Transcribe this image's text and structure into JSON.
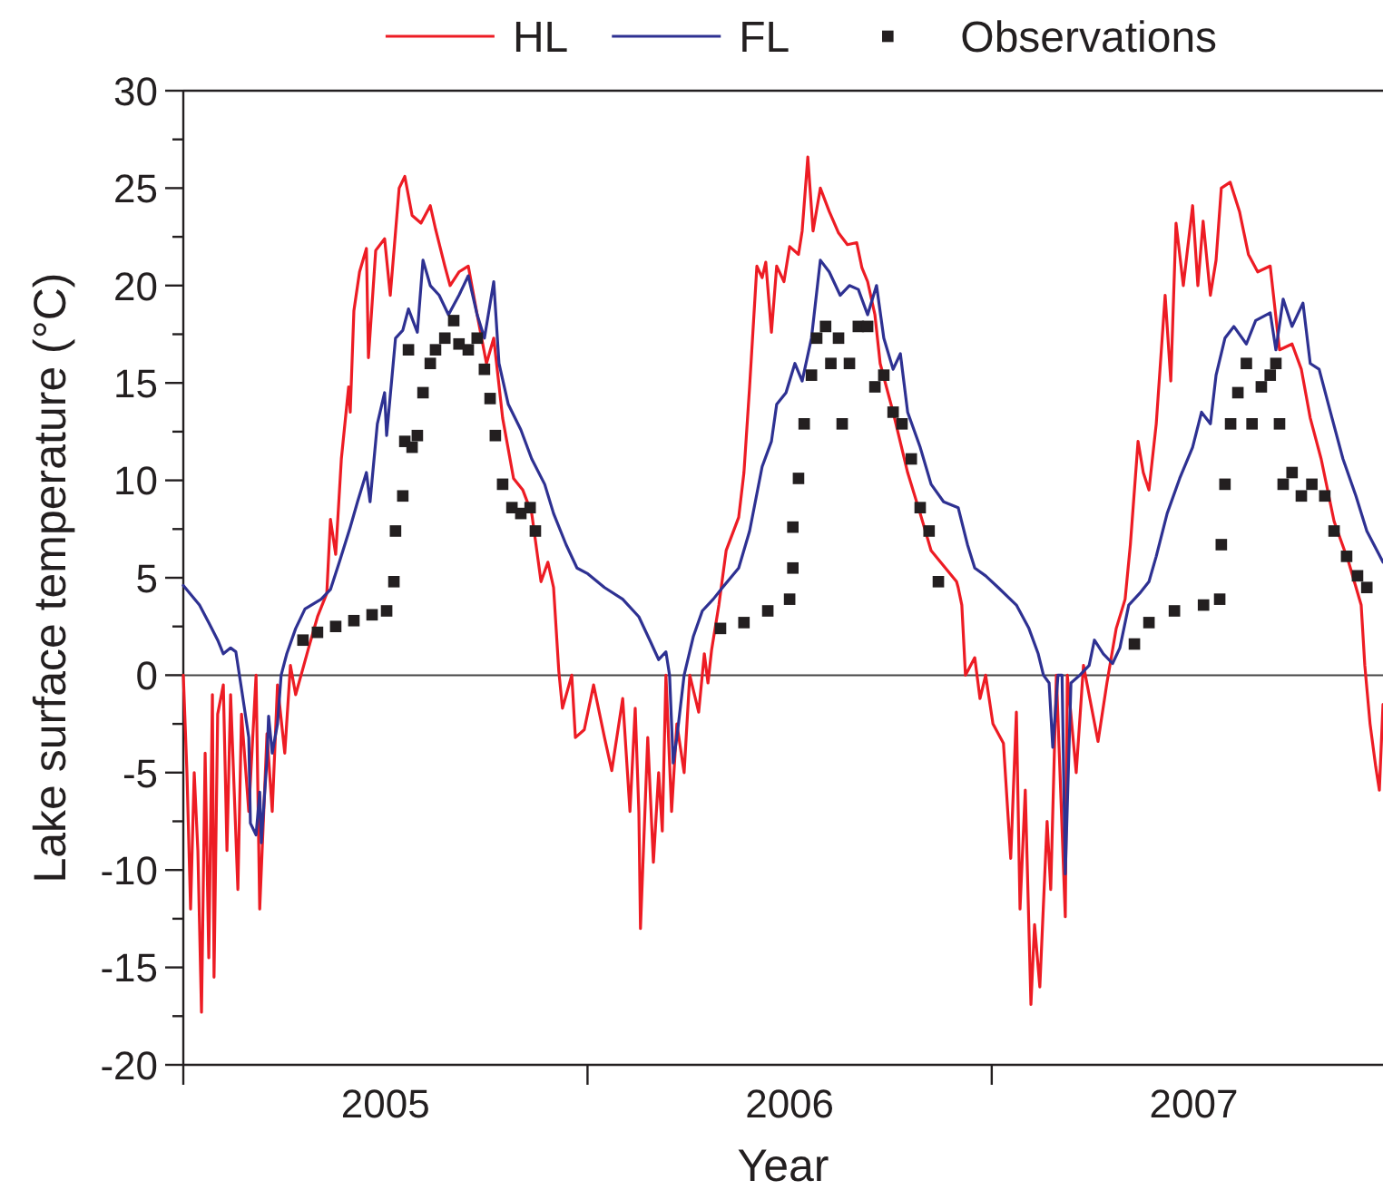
{
  "chart_data": {
    "type": "line",
    "xlabel": "Year",
    "ylabel": "Lake surface temperature (°C)",
    "xlim": [
      2005,
      2007.968
    ],
    "ylim": [
      -20,
      30
    ],
    "xticks": [
      {
        "value": 2005,
        "label": null
      },
      {
        "value": 2005.5,
        "label": "2005"
      },
      {
        "value": 2006,
        "label": null
      },
      {
        "value": 2006.5,
        "label": "2006"
      },
      {
        "value": 2007,
        "label": null
      },
      {
        "value": 2007.5,
        "label": "2007"
      }
    ],
    "yticks": [
      -20,
      {
        "value": -17.5,
        "label": null
      },
      -15,
      {
        "value": -12.5,
        "label": null
      },
      -10,
      {
        "value": -7.5,
        "label": null
      },
      -5,
      {
        "value": -2.5,
        "label": null
      },
      0,
      {
        "value": 2.5,
        "label": null
      },
      5,
      {
        "value": 7.5,
        "label": null
      },
      10,
      {
        "value": 12.5,
        "label": null
      },
      15,
      {
        "value": 17.5,
        "label": null
      },
      20,
      {
        "value": 22.5,
        "label": null
      },
      25,
      {
        "value": 27.5,
        "label": null
      },
      30
    ],
    "legend": "top",
    "grid": false,
    "line_style": "solid",
    "ref_lines": [
      {
        "axis": "y",
        "value": 0,
        "color": "#444444"
      }
    ],
    "series": [
      {
        "name": "HL",
        "color": "#ed1c24",
        "marker": "none",
        "x": [
          2005.0,
          2005.009,
          2005.018,
          2005.027,
          2005.036,
          2005.045,
          2005.054,
          2005.063,
          2005.072,
          2005.076,
          2005.085,
          2005.099,
          2005.108,
          2005.117,
          2005.135,
          2005.144,
          2005.162,
          2005.18,
          2005.189,
          2005.207,
          2005.22,
          2005.233,
          2005.251,
          2005.265,
          2005.278,
          2005.31,
          2005.332,
          2005.355,
          2005.364,
          2005.377,
          2005.391,
          2005.409,
          2005.413,
          2005.422,
          2005.436,
          2005.453,
          2005.458,
          2005.476,
          2005.498,
          2005.512,
          2005.534,
          2005.548,
          2005.566,
          2005.588,
          2005.611,
          2005.624,
          2005.647,
          2005.66,
          2005.682,
          2005.705,
          2005.727,
          2005.75,
          2005.768,
          2005.79,
          2005.817,
          2005.84,
          2005.862,
          2005.885,
          2005.902,
          2005.916,
          2005.929,
          2005.938,
          2005.961,
          2005.97,
          2005.992,
          2006.015,
          2006.042,
          2006.06,
          2006.087,
          2006.105,
          2006.118,
          2006.127,
          2006.131,
          2006.149,
          2006.163,
          2006.176,
          2006.185,
          2006.194,
          2006.208,
          2006.221,
          2006.239,
          2006.253,
          2006.275,
          2006.289,
          2006.298,
          2006.307,
          2006.325,
          2006.343,
          2006.374,
          2006.387,
          2006.401,
          2006.419,
          2006.432,
          2006.441,
          2006.455,
          2006.468,
          2006.486,
          2006.5,
          2006.522,
          2006.531,
          2006.545,
          2006.558,
          2006.576,
          2006.598,
          2006.621,
          2006.643,
          2006.666,
          2006.679,
          2006.693,
          2006.711,
          2006.724,
          2006.756,
          2006.792,
          2006.823,
          2006.85,
          2006.913,
          2006.917,
          2006.926,
          2006.935,
          2006.958,
          2006.971,
          2006.985,
          2007.003,
          2007.029,
          2007.047,
          2007.061,
          2007.07,
          2007.083,
          2007.097,
          2007.106,
          2007.119,
          2007.137,
          2007.146,
          2007.16,
          2007.182,
          2007.187,
          2007.209,
          2007.227,
          2007.263,
          2007.285,
          2007.308,
          2007.33,
          2007.343,
          2007.362,
          2007.375,
          2007.389,
          2007.407,
          2007.429,
          2007.443,
          2007.456,
          2007.474,
          2007.497,
          2007.51,
          2007.523,
          2007.541,
          2007.555,
          2007.568,
          2007.59,
          2007.613,
          2007.635,
          2007.658,
          2007.689,
          2007.712,
          2007.743,
          2007.766,
          2007.788,
          2007.815,
          2007.847,
          2007.883,
          2007.914,
          2007.923,
          2007.936,
          2007.95,
          2007.959,
          2007.968
        ],
        "values": [
          0,
          -5,
          -12,
          -5,
          -9,
          -17.3,
          -4,
          -14.5,
          -1,
          -15.5,
          -2,
          -0.5,
          -9,
          -1,
          -11,
          -2,
          -7,
          0,
          -12,
          -3,
          -7,
          -0.5,
          -4,
          0.5,
          -1,
          1.4,
          3,
          4.2,
          8,
          6.2,
          11.1,
          14.8,
          13.5,
          18.7,
          20.7,
          21.9,
          16.3,
          21.8,
          22.4,
          19.5,
          25,
          25.6,
          23.6,
          23.2,
          24.1,
          22.9,
          21,
          20,
          20.7,
          21,
          18.5,
          16,
          17.3,
          13.2,
          10.1,
          9.5,
          8.3,
          4.8,
          5.8,
          4.5,
          0.2,
          -1.7,
          0,
          -3.2,
          -2.8,
          -0.5,
          -3.2,
          -4.9,
          -1.2,
          -7,
          -1.7,
          -7,
          -13,
          -3.2,
          -9.6,
          -5,
          -8,
          0,
          -7,
          -2.5,
          -5,
          0,
          -1.9,
          1.1,
          -0.4,
          1.3,
          3.6,
          6.4,
          8.1,
          10.4,
          14.8,
          21,
          20.4,
          21.2,
          17.6,
          21,
          20.2,
          22,
          21.6,
          22.8,
          26.6,
          22.8,
          25,
          23.8,
          22.7,
          22.1,
          22.2,
          20.9,
          20.2,
          18.5,
          16,
          13.5,
          10.4,
          8.3,
          6.4,
          4.8,
          4.5,
          3.6,
          0,
          0.9,
          -1.2,
          0,
          -2.5,
          -3.5,
          -9.4,
          -1.9,
          -12,
          -5.9,
          -16.9,
          -12.8,
          -16,
          -7.5,
          -11,
          0,
          -12.4,
          0,
          -5,
          0.5,
          -3.4,
          -0.4,
          2.4,
          3.9,
          6.7,
          12,
          10.4,
          9.5,
          12.9,
          19.5,
          15.1,
          23.2,
          20,
          24.1,
          20,
          23.3,
          19.5,
          21.3,
          25,
          25.3,
          23.8,
          21.6,
          20.7,
          21,
          16.7,
          17,
          15.7,
          13.2,
          11.1,
          7.9,
          5.8,
          3.6,
          0.5,
          -2.5,
          -4.7,
          -5.9,
          -1.5
        ]
      },
      {
        "name": "FL",
        "color": "#2e3192",
        "marker": "none",
        "x": [
          2005.0,
          2005.04,
          2005.063,
          2005.085,
          2005.099,
          2005.117,
          2005.13,
          2005.144,
          2005.162,
          2005.166,
          2005.18,
          2005.189,
          2005.193,
          2005.207,
          2005.211,
          2005.22,
          2005.233,
          2005.242,
          2005.256,
          2005.278,
          2005.301,
          2005.341,
          2005.364,
          2005.386,
          2005.413,
          2005.431,
          2005.453,
          2005.462,
          2005.48,
          2005.498,
          2005.503,
          2005.525,
          2005.543,
          2005.557,
          2005.579,
          2005.593,
          2005.611,
          2005.633,
          2005.656,
          2005.682,
          2005.705,
          2005.727,
          2005.745,
          2005.768,
          2005.781,
          2005.804,
          2005.835,
          2005.862,
          2005.894,
          2005.916,
          2005.947,
          2005.974,
          2006.001,
          2006.042,
          2006.087,
          2006.127,
          2006.154,
          2006.176,
          2006.194,
          2006.203,
          2006.212,
          2006.221,
          2006.239,
          2006.262,
          2006.284,
          2006.311,
          2006.334,
          2006.374,
          2006.401,
          2006.432,
          2006.455,
          2006.468,
          2006.491,
          2006.513,
          2006.531,
          2006.554,
          2006.576,
          2006.598,
          2006.625,
          2006.648,
          2006.67,
          2006.693,
          2006.715,
          2006.733,
          2006.756,
          2006.774,
          2006.792,
          2006.823,
          2006.85,
          2006.881,
          2006.917,
          2006.94,
          2006.958,
          2006.985,
          2007.016,
          2007.061,
          2007.092,
          2007.115,
          2007.128,
          2007.142,
          2007.151,
          2007.164,
          2007.174,
          2007.182,
          2007.196,
          2007.218,
          2007.241,
          2007.254,
          2007.276,
          2007.299,
          2007.317,
          2007.339,
          2007.366,
          2007.389,
          2007.407,
          2007.434,
          2007.465,
          2007.497,
          2007.519,
          2007.541,
          2007.555,
          2007.577,
          2007.599,
          2007.63,
          2007.653,
          2007.689,
          2007.703,
          2007.721,
          2007.743,
          2007.77,
          2007.788,
          2007.81,
          2007.838,
          2007.869,
          2007.901,
          2007.928,
          2007.968
        ],
        "values": [
          4.6,
          3.6,
          2.7,
          1.8,
          1.1,
          1.4,
          1.2,
          -0.7,
          -3.2,
          -7.6,
          -8.2,
          -6,
          -8.6,
          -4.3,
          -2.1,
          -4,
          -2.5,
          0,
          1.1,
          2.4,
          3.4,
          3.9,
          4.4,
          5.8,
          7.6,
          8.9,
          10.4,
          8.9,
          12.9,
          14.5,
          12.3,
          17.3,
          17.7,
          18.8,
          17.6,
          21.3,
          20,
          19.5,
          18.5,
          19.5,
          20.5,
          18.5,
          17.3,
          20.2,
          16,
          13.9,
          12.6,
          11.1,
          9.8,
          8.3,
          6.7,
          5.5,
          5.2,
          4.5,
          3.9,
          3,
          1.8,
          0.8,
          1.2,
          0,
          -4.5,
          -3.2,
          0,
          2,
          3.3,
          3.9,
          4.5,
          5.5,
          7.4,
          10.7,
          12,
          13.9,
          14.5,
          16,
          15.1,
          17.3,
          21.3,
          20.7,
          19.5,
          20,
          19.8,
          18.5,
          20,
          17.3,
          15.7,
          16.5,
          13.5,
          11.7,
          9.8,
          8.9,
          8.6,
          6.7,
          5.5,
          5.1,
          4.5,
          3.6,
          2.4,
          1.1,
          0,
          -0.4,
          -3.7,
          0,
          0,
          -10.2,
          -0.4,
          0,
          0.5,
          1.8,
          1.1,
          0.6,
          1.4,
          3.6,
          4.2,
          4.8,
          6.1,
          8.3,
          10.1,
          11.7,
          13.5,
          12.9,
          15.4,
          17.3,
          17.9,
          17,
          18.2,
          18.6,
          16.7,
          19.3,
          17.9,
          19.1,
          16,
          15.7,
          13.5,
          11.1,
          9.2,
          7.4,
          5.8
        ]
      },
      {
        "name": "Observations",
        "type": "scatter",
        "color": "#231f20",
        "marker": "square",
        "x": [
          2005.296,
          2005.332,
          2005.377,
          2005.422,
          2005.467,
          2005.503,
          2005.521,
          2005.525,
          2005.543,
          2005.548,
          2005.557,
          2005.566,
          2005.579,
          2005.593,
          2005.611,
          2005.624,
          2005.647,
          2005.669,
          2005.682,
          2005.705,
          2005.727,
          2005.745,
          2005.759,
          2005.772,
          2005.79,
          2005.813,
          2005.835,
          2005.858,
          2005.871,
          2006.329,
          2006.387,
          2006.446,
          2006.5,
          2006.508,
          2006.508,
          2006.522,
          2006.536,
          2006.554,
          2006.567,
          2006.589,
          2006.602,
          2006.621,
          2006.63,
          2006.648,
          2006.67,
          2006.693,
          2006.711,
          2006.733,
          2006.756,
          2006.778,
          2006.801,
          2006.823,
          2006.845,
          2006.868,
          2007.353,
          2007.389,
          2007.452,
          2007.524,
          2007.564,
          2007.568,
          2007.577,
          2007.591,
          2007.609,
          2007.63,
          2007.644,
          2007.667,
          2007.689,
          2007.703,
          2007.712,
          2007.721,
          2007.743,
          2007.766,
          2007.792,
          2007.824,
          2007.847,
          2007.878,
          2007.905,
          2007.928
        ],
        "values": [
          1.8,
          2.2,
          2.5,
          2.8,
          3.1,
          3.3,
          4.8,
          7.4,
          9.2,
          12,
          16.7,
          11.7,
          12.3,
          14.5,
          16,
          16.7,
          17.3,
          18.2,
          17,
          16.7,
          17.3,
          15.7,
          14.2,
          12.3,
          9.8,
          8.6,
          8.3,
          8.6,
          7.4,
          2.4,
          2.7,
          3.3,
          3.9,
          5.5,
          7.6,
          10.1,
          12.9,
          15.4,
          17.3,
          17.9,
          16,
          17.3,
          12.9,
          16,
          17.9,
          17.9,
          14.8,
          15.4,
          13.5,
          12.9,
          11.1,
          8.6,
          7.4,
          4.8,
          1.6,
          2.7,
          3.3,
          3.6,
          3.9,
          6.7,
          9.8,
          12.9,
          14.5,
          16,
          12.9,
          14.8,
          15.4,
          16,
          12.9,
          9.8,
          10.4,
          9.2,
          9.8,
          9.2,
          7.4,
          6.1,
          5.1,
          4.5
        ]
      }
    ]
  }
}
